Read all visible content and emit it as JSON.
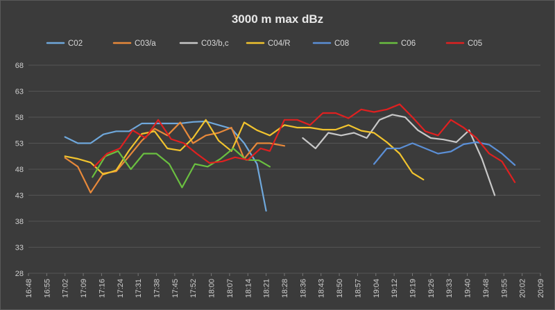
{
  "chart_data": {
    "type": "line",
    "title": "3000 m max dBz",
    "xlabel": "",
    "ylabel": "",
    "ylim": [
      28,
      68
    ],
    "yticks": [
      28,
      33,
      38,
      43,
      48,
      53,
      58,
      63,
      68
    ],
    "xticks": [
      "16:48",
      "16:55",
      "17:02",
      "17:09",
      "17:16",
      "17:24",
      "17:31",
      "17:38",
      "17:45",
      "17:52",
      "18:00",
      "18:07",
      "18:14",
      "18:21",
      "18:28",
      "18:36",
      "18:43",
      "18:50",
      "18:57",
      "19:04",
      "19:12",
      "19:19",
      "19:26",
      "19:33",
      "19:40",
      "19:48",
      "19:55",
      "20:02",
      "20:09"
    ],
    "grid": true,
    "legend": "top",
    "series": [
      {
        "name": "C02",
        "color": "#6fa8dc",
        "x": [
          2,
          2.7,
          3.4,
          4.1,
          4.8,
          5.5,
          6.2,
          6.9,
          7.6,
          8.3,
          9,
          9.7,
          10.4,
          11.1,
          11.8,
          12.5,
          13
        ],
        "y": [
          54.2,
          53,
          53,
          54.7,
          55.3,
          55.3,
          56.8,
          56.8,
          56.8,
          56.8,
          57.1,
          57.2,
          56.5,
          55.8,
          53,
          49,
          40
        ]
      },
      {
        "name": "C03/a",
        "color": "#e8893a",
        "x": [
          2,
          2.7,
          3.4,
          4.1,
          4.8,
          5.5,
          6.2,
          6.9,
          7.6,
          8.3,
          9,
          9.7,
          10.4,
          11.1,
          11.8,
          12.5,
          13.2,
          14
        ],
        "y": [
          50.2,
          48.5,
          43.5,
          47.2,
          47.6,
          50.5,
          53.5,
          55.8,
          54.5,
          57,
          53,
          54.5,
          55,
          56,
          50,
          53,
          53,
          52.5
        ]
      },
      {
        "name": "C03/b,c",
        "color": "#c8c8c8",
        "x": [
          15,
          15.7,
          16.4,
          17.1,
          17.8,
          18.5,
          19.2,
          19.9,
          20.6,
          21.3,
          22,
          22.7,
          23.4,
          24.1,
          24.8,
          25.5
        ],
        "y": [
          54,
          52,
          55,
          54.5,
          55,
          54,
          57.5,
          58.5,
          58,
          55.5,
          54,
          53.7,
          53.2,
          55.5,
          50,
          43
        ]
      },
      {
        "name": "C04/R",
        "color": "#f2c42e",
        "x": [
          2,
          2.7,
          3.4,
          4.1,
          4.8,
          5.5,
          6.2,
          6.9,
          7.6,
          8.3,
          9,
          9.7,
          10.4,
          11.1,
          11.8,
          12.5,
          13.2,
          14,
          14.7,
          15.4,
          16.1,
          16.8,
          17.5,
          18.2,
          18.9,
          19.6,
          20.3,
          21,
          21.6
        ],
        "y": [
          50.5,
          50,
          49.3,
          47,
          47.8,
          51.6,
          54.8,
          55.3,
          52,
          51.6,
          54,
          57.5,
          53.5,
          51.5,
          57,
          55.5,
          54.5,
          56.5,
          56,
          56,
          55.6,
          55.6,
          56.5,
          55.4,
          55,
          53.2,
          51,
          47.3,
          46
        ]
      },
      {
        "name": "C08",
        "color": "#5b8fd6",
        "x": [
          18.9,
          19.6,
          20.3,
          21,
          21.7,
          22.4,
          23.1,
          23.8,
          24.5,
          25.2,
          25.9,
          26.6
        ],
        "y": [
          49,
          52,
          52,
          53,
          52,
          51,
          51.4,
          52.8,
          53.2,
          52.7,
          51,
          48.8
        ]
      },
      {
        "name": "C06",
        "color": "#6abf40",
        "x": [
          3.5,
          4.2,
          4.9,
          5.6,
          6.3,
          7,
          7.7,
          8.4,
          9.1,
          9.8,
          10.5,
          11.2,
          11.9,
          12.6,
          13.2
        ],
        "y": [
          46.5,
          50.5,
          51.5,
          48,
          51,
          51,
          49,
          44.5,
          49,
          48.5,
          50,
          52,
          49.8,
          49.7,
          48.5
        ]
      },
      {
        "name": "C05",
        "color": "#e02020",
        "x": [
          3.6,
          4.3,
          5,
          5.7,
          6.4,
          7.1,
          7.8,
          8.5,
          9.2,
          9.9,
          10.6,
          11.3,
          12,
          12.7,
          13.2,
          14,
          14.7,
          15.4,
          16.1,
          16.8,
          17.5,
          18.2,
          18.9,
          19.6,
          20.3,
          21,
          21.7,
          22.4,
          23.1,
          23.8,
          24.5,
          25.2,
          25.9,
          26.6
        ],
        "y": [
          48.5,
          51,
          52,
          55.5,
          54,
          57.5,
          53.8,
          53,
          51,
          49.2,
          49.5,
          50.3,
          49.8,
          52,
          51.5,
          57.5,
          57.5,
          56.5,
          58.8,
          58.8,
          57.8,
          59.5,
          59,
          59.5,
          60.5,
          58,
          55.3,
          54.5,
          57.5,
          56,
          54,
          51,
          49.5,
          45.5
        ]
      }
    ]
  }
}
